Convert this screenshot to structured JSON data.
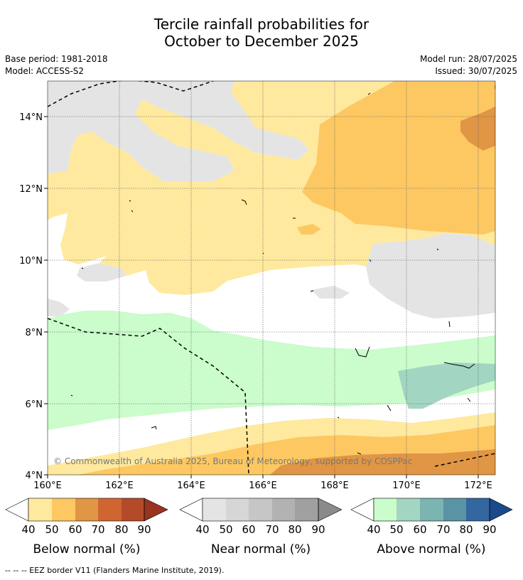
{
  "title": {
    "line1": "Tercile rainfall probabilities for",
    "line2": "October to December 2025"
  },
  "meta": {
    "base_period": "Base period: 1981-2018",
    "model": "Model: ACCESS-S2",
    "model_run": "Model run: 28/07/2025",
    "issued": "Issued: 30/07/2025"
  },
  "map": {
    "lon_ticks": [
      "160°E",
      "162°E",
      "164°E",
      "166°E",
      "168°E",
      "170°E",
      "172°E"
    ],
    "lat_ticks": [
      "14°N",
      "12°N",
      "10°N",
      "8°N",
      "6°N",
      "4°N"
    ],
    "copyright": "© Commonwealth of Australia 2025, Bureau of Meteorology, supported by COSPPac",
    "colors": {
      "below_50": "#fee99e",
      "below_60": "#fdc862",
      "below_70": "#e09645",
      "near_50": "#e4e4e4",
      "above_50": "#cbfccc",
      "above_60": "#a2d5c2"
    }
  },
  "legends": [
    {
      "title": "Below normal (%)",
      "ticks": [
        "40",
        "50",
        "60",
        "70",
        "80",
        "90"
      ],
      "colors": [
        "#fee99e",
        "#fdc862",
        "#e09645",
        "#cf6632",
        "#b34a2a",
        "#983420"
      ]
    },
    {
      "title": "Near normal (%)",
      "ticks": [
        "40",
        "50",
        "60",
        "70",
        "80",
        "90"
      ],
      "colors": [
        "#e4e4e4",
        "#d6d6d6",
        "#c6c6c6",
        "#b2b2b2",
        "#a0a0a0",
        "#8a8a8a"
      ]
    },
    {
      "title": "Above normal (%)",
      "ticks": [
        "40",
        "50",
        "60",
        "70",
        "80",
        "90"
      ],
      "colors": [
        "#cbfccc",
        "#a2d5c2",
        "#7bb4b0",
        "#5a93a3",
        "#3466a0",
        "#1a4a8a"
      ]
    }
  ],
  "footer": "--  --  -- EEZ border V11 (Flanders Marine Institute, 2019)."
}
